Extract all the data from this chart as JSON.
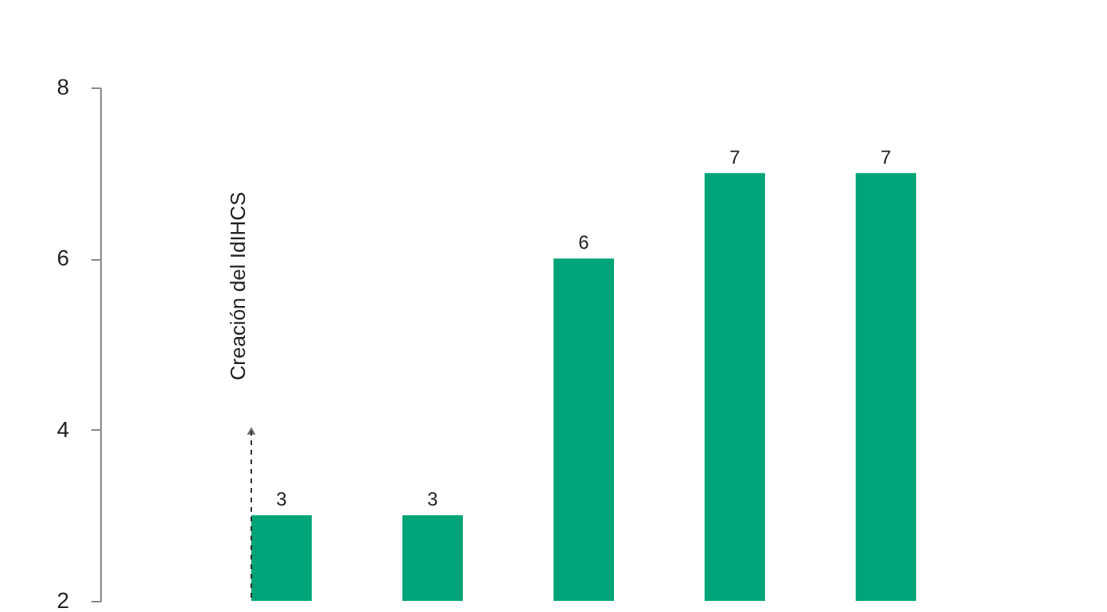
{
  "chart_data": {
    "type": "bar",
    "categories": [
      null,
      null,
      null,
      null,
      null
    ],
    "values": [
      3,
      3,
      6,
      7,
      7
    ],
    "color": "#00a478",
    "ylim": [
      2,
      8
    ],
    "yticks": [
      2,
      4,
      6,
      8
    ],
    "grid": false,
    "tick_labels": "y",
    "data_labels": true,
    "annotations": [
      "Creación del IdIHCS"
    ]
  }
}
